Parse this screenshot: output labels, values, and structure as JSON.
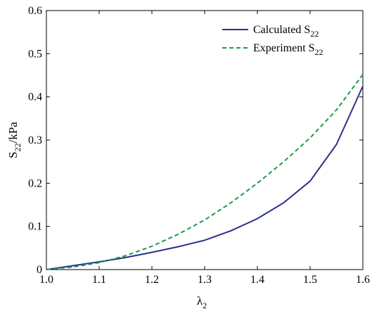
{
  "chart_data": {
    "type": "line",
    "xlabel": "λ2",
    "xlabel_main": "λ",
    "xlabel_sub": "2",
    "ylabel_main": "S",
    "ylabel_sub": "22",
    "ylabel_tail": "/kPa",
    "xlim": [
      1.0,
      1.6
    ],
    "ylim": [
      0,
      0.6
    ],
    "x_ticks": [
      1.0,
      1.1,
      1.2,
      1.3,
      1.4,
      1.5,
      1.6
    ],
    "x_tick_labels": [
      "1.0",
      "1.1",
      "1.2",
      "1.3",
      "1.4",
      "1.5",
      "1.6"
    ],
    "y_ticks": [
      0,
      0.1,
      0.2,
      0.3,
      0.4,
      0.5,
      0.6
    ],
    "y_tick_labels": [
      "0",
      "0.1",
      "0.2",
      "0.3",
      "0.4",
      "0.5",
      "0.6"
    ],
    "grid": false,
    "legend_position": "top-right",
    "series": [
      {
        "name": "Calculated S22",
        "legend_main": "Calculated S",
        "legend_sub": "22",
        "color": "#2b2f8c",
        "style": "solid",
        "x": [
          1.0,
          1.05,
          1.1,
          1.15,
          1.2,
          1.25,
          1.3,
          1.35,
          1.4,
          1.45,
          1.5,
          1.55,
          1.6
        ],
        "y": [
          0.0,
          0.009,
          0.018,
          0.028,
          0.04,
          0.053,
          0.068,
          0.09,
          0.118,
          0.155,
          0.205,
          0.29,
          0.425
        ]
      },
      {
        "name": "Experiment S22",
        "legend_main": "Experiment S",
        "legend_sub": "22",
        "color": "#1a9a4a",
        "style": "dashed",
        "x": [
          1.0,
          1.05,
          1.1,
          1.15,
          1.2,
          1.25,
          1.3,
          1.35,
          1.4,
          1.45,
          1.5,
          1.55,
          1.6
        ],
        "y": [
          0.0,
          0.006,
          0.016,
          0.032,
          0.054,
          0.082,
          0.115,
          0.155,
          0.2,
          0.25,
          0.305,
          0.37,
          0.452
        ]
      }
    ]
  }
}
